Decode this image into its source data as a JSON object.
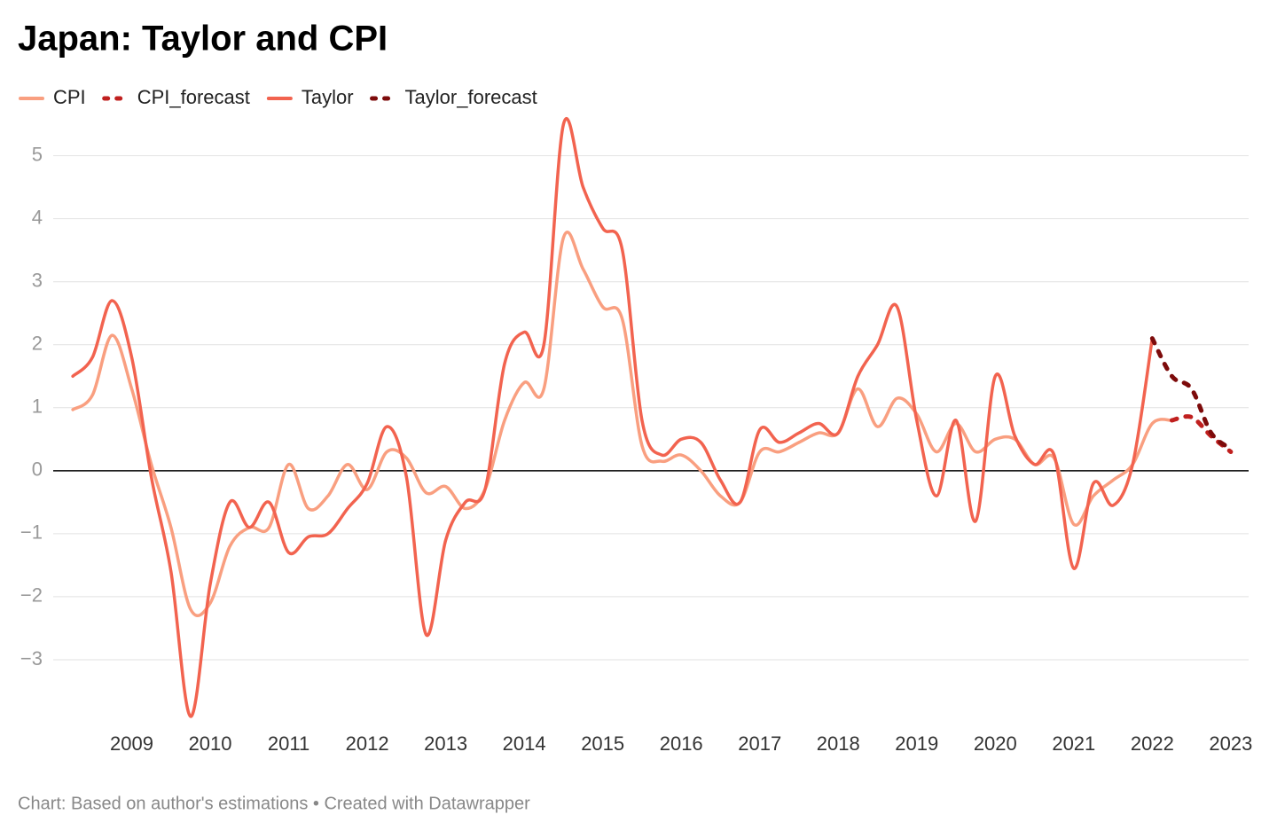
{
  "chart_data": {
    "type": "line",
    "title": "Japan: Taylor and CPI",
    "source": "Chart: Based on author's estimations • Created with Datawrapper",
    "x": [
      2008.25,
      2008.5,
      2008.75,
      2009,
      2009.25,
      2009.5,
      2009.75,
      2010,
      2010.25,
      2010.5,
      2010.75,
      2011,
      2011.25,
      2011.5,
      2011.75,
      2012,
      2012.25,
      2012.5,
      2012.75,
      2013,
      2013.25,
      2013.5,
      2013.75,
      2014,
      2014.25,
      2014.5,
      2014.75,
      2015,
      2015.25,
      2015.5,
      2015.75,
      2016,
      2016.25,
      2016.5,
      2016.75,
      2017,
      2017.25,
      2017.5,
      2017.75,
      2018,
      2018.25,
      2018.5,
      2018.75,
      2019,
      2019.25,
      2019.5,
      2019.75,
      2020,
      2020.25,
      2020.5,
      2020.75,
      2021,
      2021.25,
      2021.5,
      2021.75,
      2022,
      2022.25,
      2022.5,
      2022.75,
      2023
    ],
    "series": [
      {
        "name": "CPI",
        "color": "#f99f80",
        "style": "solid",
        "values": [
          0.97,
          1.2,
          2.15,
          1.3,
          0.1,
          -0.9,
          -2.2,
          -2.1,
          -1.2,
          -0.9,
          -0.9,
          0.1,
          -0.6,
          -0.4,
          0.1,
          -0.3,
          0.3,
          0.2,
          -0.35,
          -0.25,
          -0.6,
          -0.3,
          0.8,
          1.4,
          1.3,
          3.7,
          3.2,
          2.6,
          2.4,
          0.4,
          0.15,
          0.25,
          0,
          -0.4,
          -0.5,
          0.3,
          0.3,
          0.45,
          0.6,
          0.6,
          1.3,
          0.7,
          1.15,
          0.9,
          0.3,
          0.75,
          0.3,
          0.5,
          0.5,
          0.1,
          0.2,
          -0.85,
          -0.4,
          -0.15,
          0.1,
          0.75,
          0.8,
          null,
          null,
          null
        ]
      },
      {
        "name": "CPI_forecast",
        "color": "#c0201f",
        "style": "dotted",
        "values": [
          null,
          null,
          null,
          null,
          null,
          null,
          null,
          null,
          null,
          null,
          null,
          null,
          null,
          null,
          null,
          null,
          null,
          null,
          null,
          null,
          null,
          null,
          null,
          null,
          null,
          null,
          null,
          null,
          null,
          null,
          null,
          null,
          null,
          null,
          null,
          null,
          null,
          null,
          null,
          null,
          null,
          null,
          null,
          null,
          null,
          null,
          null,
          null,
          null,
          null,
          null,
          null,
          null,
          null,
          null,
          null,
          0.8,
          0.85,
          0.55,
          0.3
        ]
      },
      {
        "name": "Taylor",
        "color": "#f2634f",
        "style": "solid",
        "values": [
          1.5,
          1.8,
          2.7,
          1.8,
          -0.1,
          -1.6,
          -3.9,
          -1.8,
          -0.5,
          -0.9,
          -0.5,
          -1.3,
          -1.05,
          -1.0,
          -0.6,
          -0.2,
          0.7,
          -0.1,
          -2.6,
          -1.1,
          -0.5,
          -0.3,
          1.7,
          2.2,
          2.0,
          5.5,
          4.5,
          3.85,
          3.5,
          0.8,
          0.25,
          0.5,
          0.45,
          -0.15,
          -0.5,
          0.65,
          0.45,
          0.6,
          0.75,
          0.6,
          1.5,
          2.0,
          2.6,
          0.8,
          -0.4,
          0.8,
          -0.8,
          1.5,
          0.55,
          0.1,
          0.25,
          -1.55,
          -0.2,
          -0.55,
          0.1,
          2.1,
          null,
          null,
          null,
          null
        ]
      },
      {
        "name": "Taylor_forecast",
        "color": "#7d0b0b",
        "style": "dotted",
        "values": [
          null,
          null,
          null,
          null,
          null,
          null,
          null,
          null,
          null,
          null,
          null,
          null,
          null,
          null,
          null,
          null,
          null,
          null,
          null,
          null,
          null,
          null,
          null,
          null,
          null,
          null,
          null,
          null,
          null,
          null,
          null,
          null,
          null,
          null,
          null,
          null,
          null,
          null,
          null,
          null,
          null,
          null,
          null,
          null,
          null,
          null,
          null,
          null,
          null,
          null,
          null,
          null,
          null,
          null,
          null,
          2.1,
          1.5,
          1.3,
          0.6,
          0.35
        ]
      }
    ],
    "xlim": [
      2008,
      2023.25
    ],
    "xticks": [
      2009,
      2010,
      2011,
      2012,
      2013,
      2014,
      2015,
      2016,
      2017,
      2018,
      2019,
      2020,
      2021,
      2022,
      2023
    ],
    "ylim": [
      -4,
      5.6
    ],
    "yticks": [
      {
        "value": -3,
        "label": "−3"
      },
      {
        "value": -2,
        "label": "−2"
      },
      {
        "value": -1,
        "label": "−1"
      },
      0,
      1,
      2,
      3,
      4,
      5
    ],
    "grid": true
  }
}
